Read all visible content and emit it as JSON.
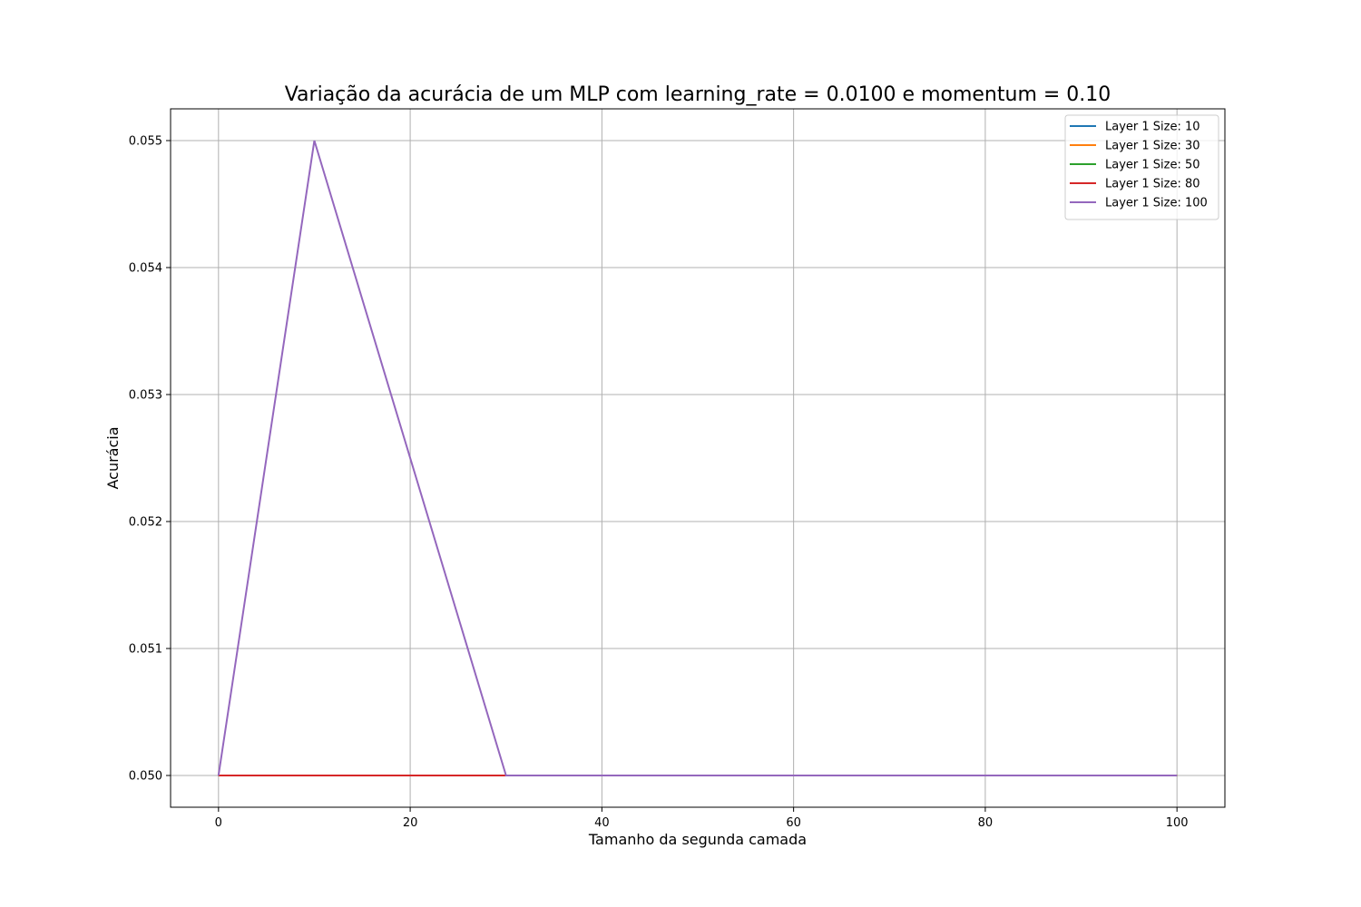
{
  "chart_data": {
    "type": "line",
    "title": "Variação da acurácia de um MLP com learning_rate = 0.0100 e momentum = 0.10",
    "xlabel": "Tamanho da segunda camada",
    "ylabel": "Acurácia",
    "xlim": [
      -5,
      105
    ],
    "ylim": [
      0.04975,
      0.05525
    ],
    "xticks": [
      0,
      20,
      40,
      60,
      80,
      100
    ],
    "xtick_labels": [
      "0",
      "20",
      "40",
      "60",
      "80",
      "100"
    ],
    "yticks": [
      0.05,
      0.051,
      0.052,
      0.053,
      0.054,
      0.055
    ],
    "ytick_labels": [
      "0.050",
      "0.051",
      "0.052",
      "0.053",
      "0.054",
      "0.055"
    ],
    "grid": true,
    "legend_position": "top-right",
    "x": [
      0,
      10,
      30,
      50,
      80,
      100
    ],
    "series": [
      {
        "name": "Layer 1 Size: 10",
        "color": "#1f77b4",
        "values": [
          0.05,
          0.05,
          0.05,
          0.05,
          0.05,
          0.05
        ]
      },
      {
        "name": "Layer 1 Size: 30",
        "color": "#ff7f0e",
        "values": [
          0.05,
          0.05,
          0.05,
          0.05,
          0.05,
          0.05
        ]
      },
      {
        "name": "Layer 1 Size: 50",
        "color": "#2ca02c",
        "values": [
          0.05,
          0.05,
          0.05,
          0.05,
          0.05,
          0.05
        ]
      },
      {
        "name": "Layer 1 Size: 80",
        "color": "#d62728",
        "values": [
          0.05,
          0.05,
          0.05,
          0.05,
          0.05,
          0.05
        ]
      },
      {
        "name": "Layer 1 Size: 100",
        "color": "#9467bd",
        "values": [
          0.05,
          0.055,
          0.05,
          0.05,
          0.05,
          0.05
        ]
      }
    ]
  }
}
